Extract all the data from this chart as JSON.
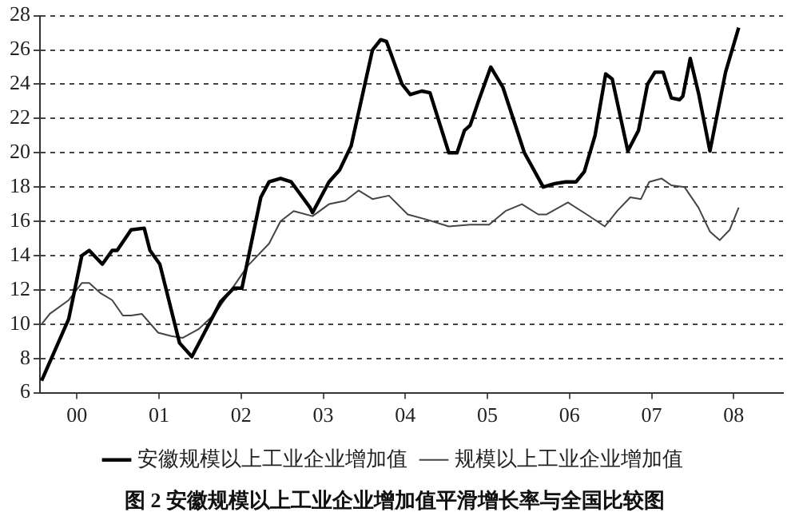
{
  "chart_data": {
    "type": "line",
    "title": "图 2 安徽规模以上工业企业增加值平滑增长率与全国比较图",
    "xlim": [
      1999.55,
      2008.6
    ],
    "xticks": [
      {
        "value": 2000,
        "label": "00"
      },
      {
        "value": 2001,
        "label": "01"
      },
      {
        "value": 2002,
        "label": "02"
      },
      {
        "value": 2003,
        "label": "03"
      },
      {
        "value": 2004,
        "label": "04"
      },
      {
        "value": 2005,
        "label": "05"
      },
      {
        "value": 2006,
        "label": "06"
      },
      {
        "value": 2007,
        "label": "07"
      },
      {
        "value": 2008,
        "label": "08"
      }
    ],
    "ylim": [
      6,
      28
    ],
    "yticks": [
      6,
      8,
      10,
      12,
      14,
      16,
      18,
      20,
      22,
      24,
      26,
      28
    ],
    "grid": "y",
    "legend": "bottom",
    "marker": "none",
    "line_style": "solid",
    "series": [
      {
        "name": "安徽规模以上工业企业增加值",
        "color": "#000000",
        "x": [
          1999.57,
          1999.9,
          2000.06,
          2000.15,
          2000.31,
          2000.43,
          2000.49,
          2000.66,
          2000.82,
          2000.89,
          2001.01,
          2001.25,
          2001.4,
          2001.75,
          2001.91,
          2002.01,
          2002.24,
          2002.34,
          2002.48,
          2002.61,
          2002.84,
          2002.87,
          2003.07,
          2003.2,
          2003.34,
          2003.6,
          2003.7,
          2003.77,
          2003.96,
          2004.06,
          2004.2,
          2004.3,
          2004.53,
          2004.63,
          2004.72,
          2004.79,
          2004.89,
          2005.04,
          2005.19,
          2005.45,
          2005.68,
          2005.82,
          2005.95,
          2006.08,
          2006.18,
          2006.31,
          2006.44,
          2006.52,
          2006.71,
          2006.84,
          2006.95,
          2007.04,
          2007.14,
          2007.24,
          2007.34,
          2007.38,
          2007.47,
          2007.57,
          2007.71,
          2007.9,
          2008.06
        ],
        "values": [
          6.7,
          10.3,
          14.0,
          14.3,
          13.5,
          14.3,
          14.3,
          15.5,
          15.6,
          14.3,
          13.5,
          8.9,
          8.1,
          11.3,
          12.1,
          12.1,
          17.4,
          18.3,
          18.5,
          18.3,
          16.8,
          16.5,
          18.3,
          19.0,
          20.4,
          26.0,
          26.6,
          26.5,
          24.0,
          23.4,
          23.6,
          23.5,
          20.0,
          20.0,
          21.3,
          21.6,
          23.0,
          25.0,
          23.8,
          20.0,
          18.0,
          18.2,
          18.3,
          18.3,
          18.9,
          21.0,
          24.6,
          24.3,
          20.1,
          21.3,
          24.0,
          24.7,
          24.7,
          23.2,
          23.1,
          23.3,
          25.5,
          23.5,
          20.1,
          24.7,
          27.3
        ]
      },
      {
        "name": "规模以上工业企业增加值",
        "color": "#444444",
        "x": [
          1999.57,
          1999.67,
          1999.9,
          2000.06,
          2000.15,
          2000.29,
          2000.43,
          2000.56,
          2000.66,
          2000.79,
          2000.99,
          2001.15,
          2001.29,
          2001.48,
          2001.68,
          2001.88,
          2002.08,
          2002.34,
          2002.48,
          2002.64,
          2002.87,
          2003.07,
          2003.27,
          2003.43,
          2003.6,
          2003.8,
          2004.03,
          2004.26,
          2004.53,
          2004.79,
          2005.02,
          2005.22,
          2005.42,
          2005.62,
          2005.72,
          2005.98,
          2006.21,
          2006.43,
          2006.58,
          2006.74,
          2006.87,
          2006.97,
          2007.12,
          2007.24,
          2007.4,
          2007.57,
          2007.71,
          2007.83,
          2007.95,
          2008.06
        ],
        "values": [
          10.0,
          10.6,
          11.4,
          12.4,
          12.4,
          11.8,
          11.4,
          10.5,
          10.5,
          10.6,
          9.5,
          9.3,
          9.2,
          9.7,
          10.6,
          12.0,
          13.4,
          14.7,
          16.0,
          16.6,
          16.3,
          17.0,
          17.2,
          17.8,
          17.3,
          17.5,
          16.4,
          16.1,
          15.7,
          15.8,
          15.8,
          16.6,
          17.0,
          16.4,
          16.4,
          17.1,
          16.4,
          15.7,
          16.6,
          17.4,
          17.3,
          18.3,
          18.5,
          18.1,
          18.0,
          16.8,
          15.4,
          14.9,
          15.5,
          16.8
        ]
      }
    ]
  }
}
